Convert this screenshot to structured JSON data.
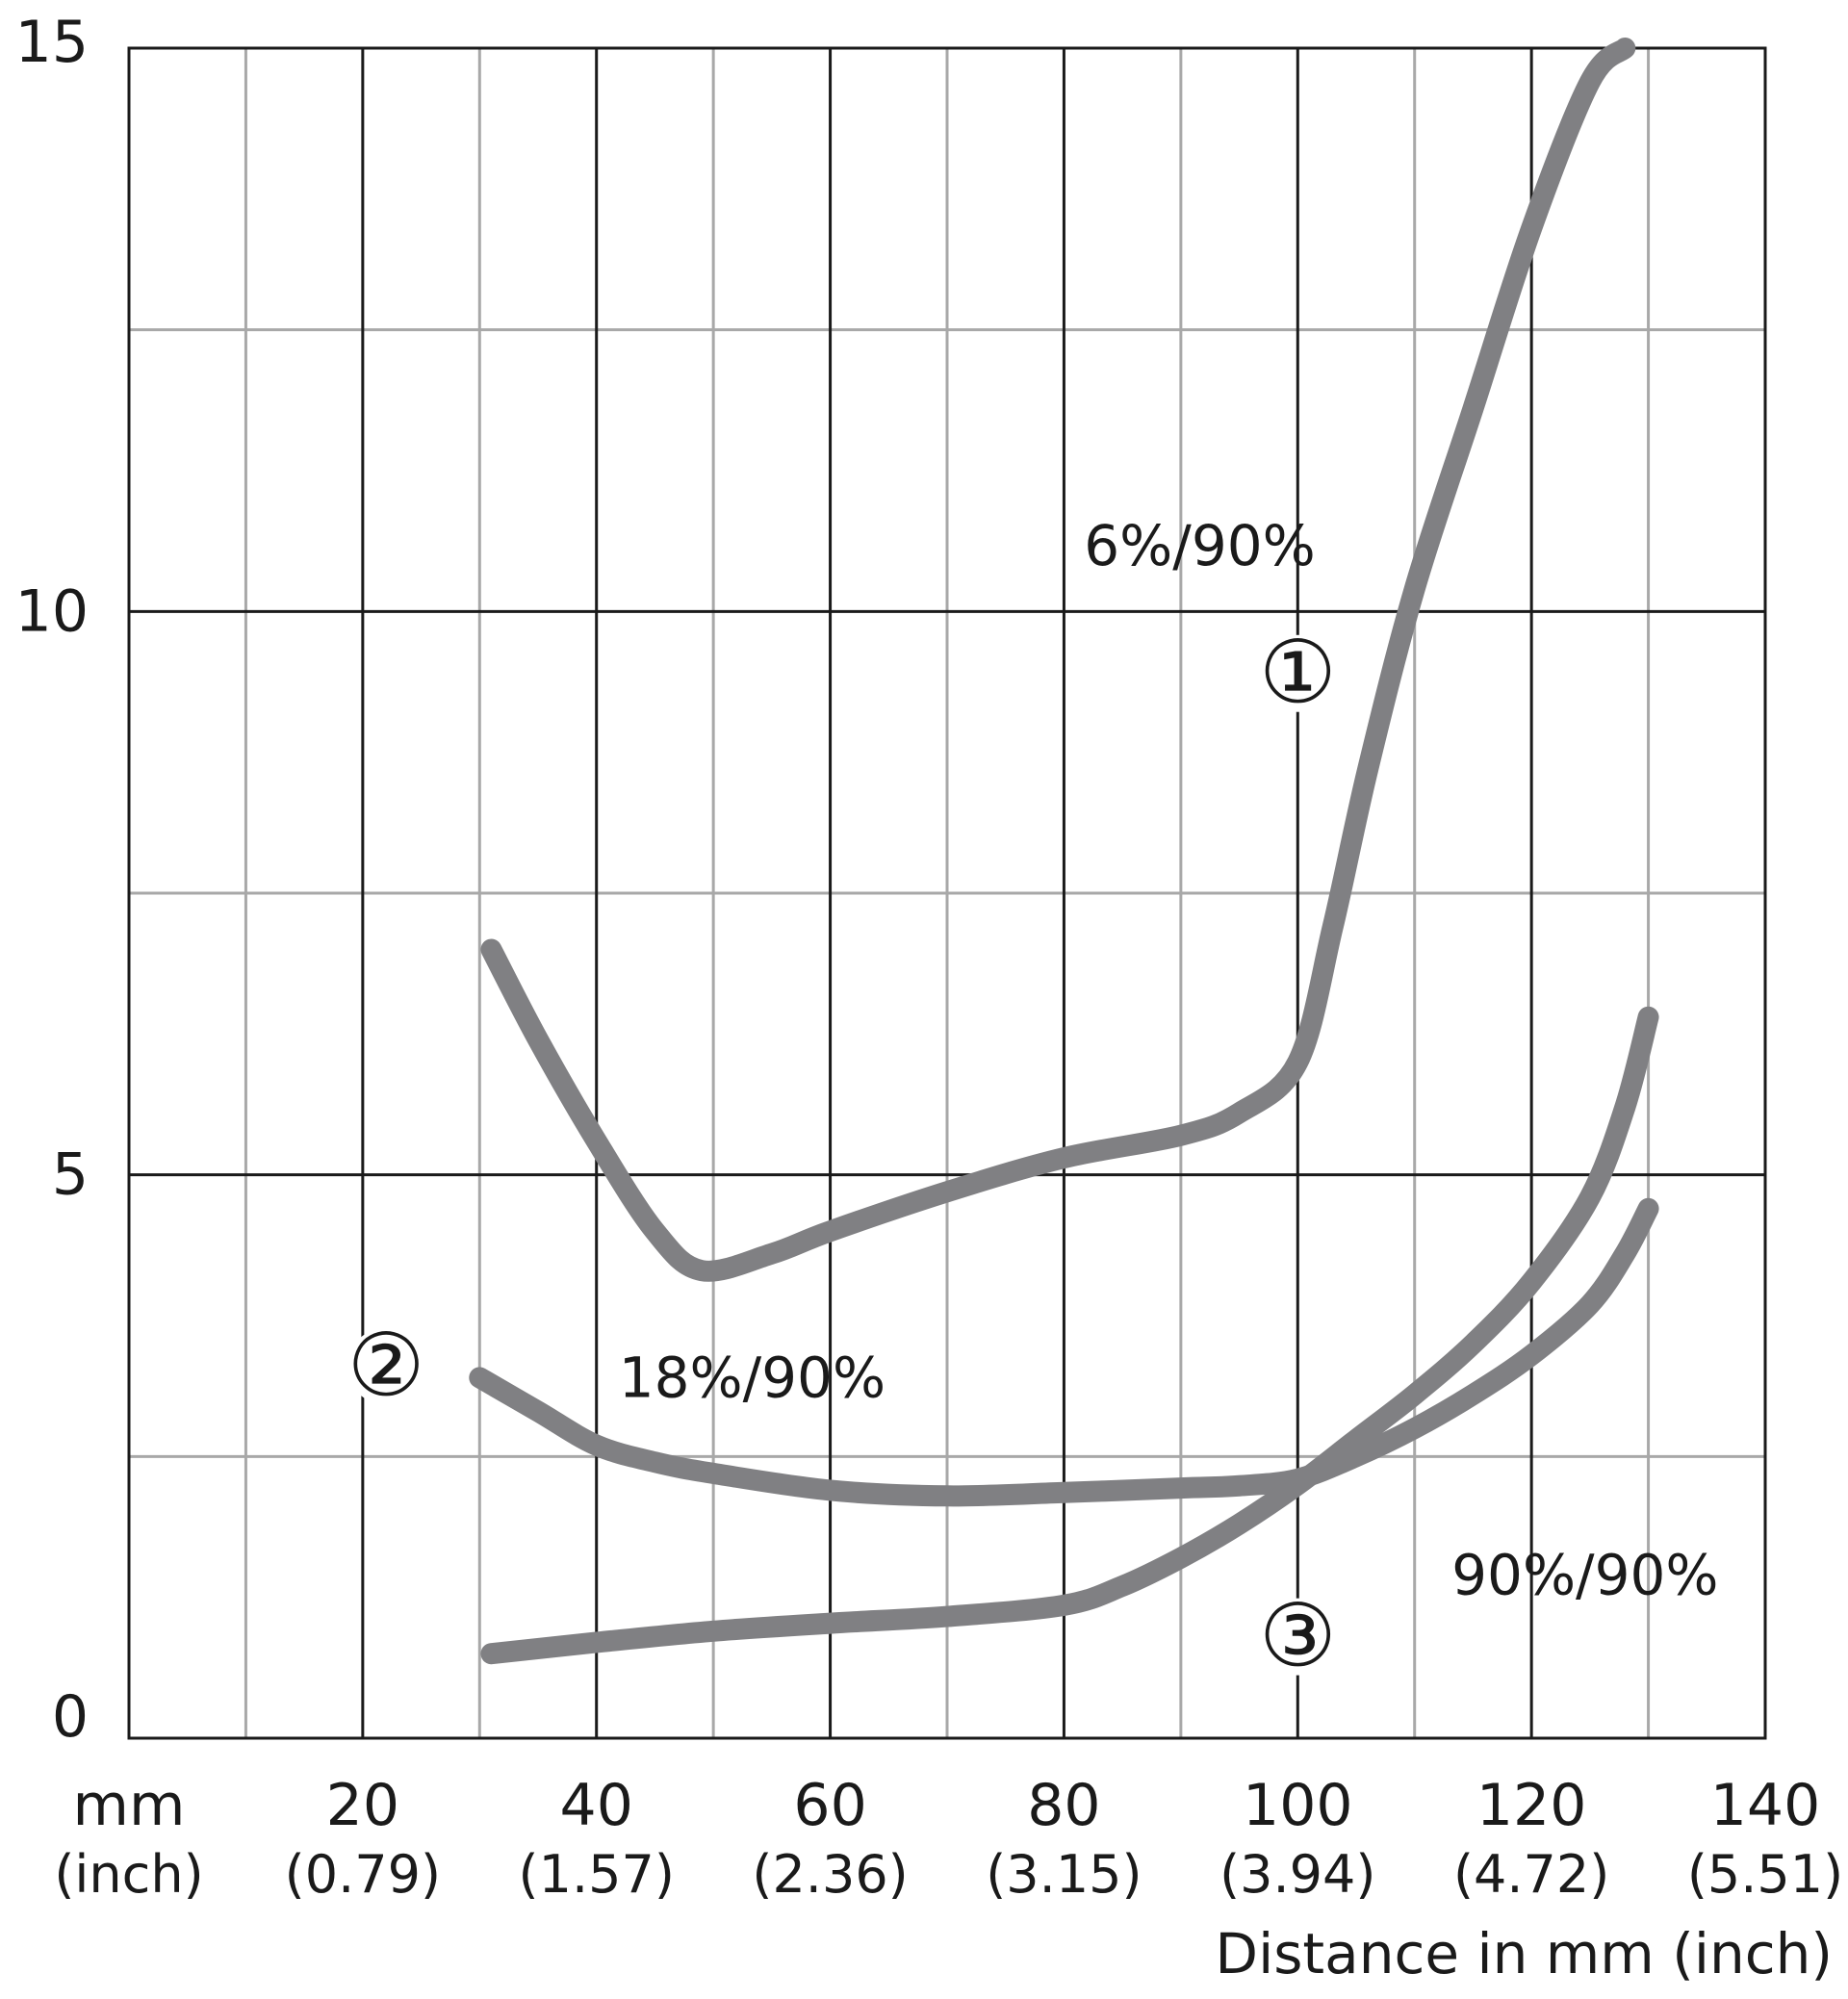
{
  "chart_data": {
    "type": "line",
    "xlabel": "Distance in mm (inch)",
    "ylabel": "",
    "xlim": [
      0,
      140
    ],
    "ylim": [
      0,
      15
    ],
    "grid": true,
    "x_unit_labels": {
      "primary": "mm",
      "secondary": "(inch)"
    },
    "x_ticks": [
      {
        "value": 20,
        "label": "20",
        "sub": "(0.79)"
      },
      {
        "value": 40,
        "label": "40",
        "sub": "(1.57)"
      },
      {
        "value": 60,
        "label": "60",
        "sub": "(2.36)"
      },
      {
        "value": 80,
        "label": "80",
        "sub": "(3.15)"
      },
      {
        "value": 100,
        "label": "100",
        "sub": "(3.94)"
      },
      {
        "value": 120,
        "label": "120",
        "sub": "(4.72)"
      },
      {
        "value": 140,
        "label": "140",
        "sub": "(5.51)"
      }
    ],
    "y_ticks": [
      {
        "value": 0,
        "label": "0"
      },
      {
        "value": 5,
        "label": "5"
      },
      {
        "value": 10,
        "label": "10"
      },
      {
        "value": 15,
        "label": "15"
      }
    ],
    "x_minor_step": 10,
    "y_minor_step": 2.5,
    "line_color": "#808083",
    "series": [
      {
        "marker": "①",
        "label": "6%/90%",
        "points": [
          [
            31,
            7.0
          ],
          [
            35,
            6.2
          ],
          [
            40,
            5.3
          ],
          [
            45,
            4.5
          ],
          [
            49,
            4.15
          ],
          [
            55,
            4.3
          ],
          [
            60,
            4.5
          ],
          [
            70,
            4.85
          ],
          [
            80,
            5.15
          ],
          [
            90,
            5.35
          ],
          [
            95,
            5.55
          ],
          [
            100,
            6.0
          ],
          [
            103,
            7.2
          ],
          [
            106,
            8.6
          ],
          [
            110,
            10.2
          ],
          [
            115,
            11.8
          ],
          [
            120,
            13.4
          ],
          [
            125,
            14.7
          ],
          [
            128,
            15.0
          ]
        ]
      },
      {
        "marker": "②",
        "label": "18%/90%",
        "points": [
          [
            30,
            3.2
          ],
          [
            35,
            2.9
          ],
          [
            40,
            2.6
          ],
          [
            45,
            2.45
          ],
          [
            50,
            2.35
          ],
          [
            60,
            2.2
          ],
          [
            70,
            2.15
          ],
          [
            80,
            2.18
          ],
          [
            90,
            2.22
          ],
          [
            95,
            2.24
          ],
          [
            100,
            2.3
          ],
          [
            105,
            2.5
          ],
          [
            110,
            2.75
          ],
          [
            115,
            3.05
          ],
          [
            120,
            3.4
          ],
          [
            125,
            3.85
          ],
          [
            128,
            4.3
          ],
          [
            130,
            4.7
          ]
        ]
      },
      {
        "marker": "③",
        "label": "90%/90%",
        "points": [
          [
            31,
            0.75
          ],
          [
            40,
            0.85
          ],
          [
            50,
            0.95
          ],
          [
            60,
            1.02
          ],
          [
            70,
            1.08
          ],
          [
            80,
            1.18
          ],
          [
            85,
            1.35
          ],
          [
            90,
            1.6
          ],
          [
            95,
            1.9
          ],
          [
            100,
            2.25
          ],
          [
            105,
            2.65
          ],
          [
            110,
            3.05
          ],
          [
            115,
            3.5
          ],
          [
            120,
            4.05
          ],
          [
            125,
            4.8
          ],
          [
            128,
            5.6
          ],
          [
            130,
            6.4
          ]
        ]
      }
    ],
    "annotations": [
      {
        "text": "6%/90%",
        "x": 100,
        "y": 10.6
      },
      {
        "text": "18%/90%",
        "x": 47,
        "y": 3.2
      },
      {
        "text": "90%/90%",
        "x": 113,
        "y": 1.45
      }
    ],
    "markers": [
      {
        "text": "①",
        "x": 100,
        "y": 9.45
      },
      {
        "text": "②",
        "x": 22,
        "y": 3.3
      },
      {
        "text": "③",
        "x": 100,
        "y": 0.9
      }
    ]
  }
}
